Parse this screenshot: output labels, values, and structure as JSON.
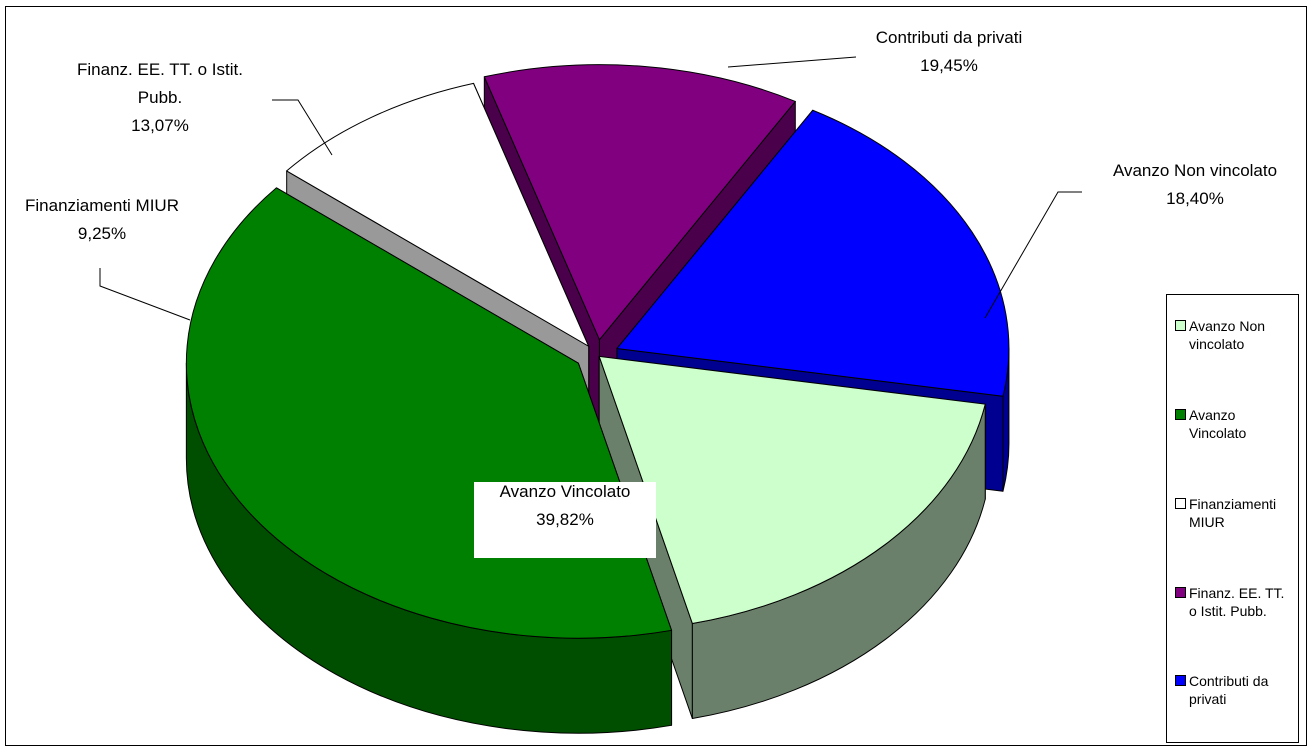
{
  "chart_data": {
    "type": "pie",
    "style": "3d-exploded",
    "title": "",
    "legend_position": "right",
    "slices": [
      {
        "name": "Avanzo Non vincolato",
        "label_text": "Avanzo Non vincolato",
        "percent_label": "18,40%",
        "value": 18.4,
        "legend_lines": [
          "Avanzo Non",
          "vincolato"
        ],
        "color": "#CCFFCC",
        "side_color": "#6A806A"
      },
      {
        "name": "Avanzo Vincolato",
        "label_text": "Avanzo Vincolato",
        "percent_label": "39,82%",
        "value": 39.82,
        "legend_lines": [
          "Avanzo",
          "Vincolato"
        ],
        "color": "#008000",
        "side_color": "#004F00"
      },
      {
        "name": "Finanziamenti MIUR",
        "label_text": "Finanziamenti MIUR",
        "percent_label": "9,25%",
        "value": 9.25,
        "legend_lines": [
          "Finanziamenti",
          "MIUR"
        ],
        "color": "#FFFFFF",
        "side_color": "#999999"
      },
      {
        "name": "Finanz. EE. TT. o Istit. Pubb.",
        "label_text": "Finanz. EE. TT. o Istit. Pubb.",
        "percent_label": "13,07%",
        "value": 13.07,
        "legend_lines": [
          "Finanz. EE. TT.",
          "o Istit. Pubb."
        ],
        "color": "#800080",
        "side_color": "#4A004A"
      },
      {
        "name": "Contributi da privati",
        "label_text": "Contributi da privati",
        "percent_label": "19,45%",
        "value": 19.45,
        "legend_lines": [
          "Contributi da",
          "privati"
        ],
        "color": "#0000FF",
        "side_color": "#000090"
      }
    ]
  }
}
